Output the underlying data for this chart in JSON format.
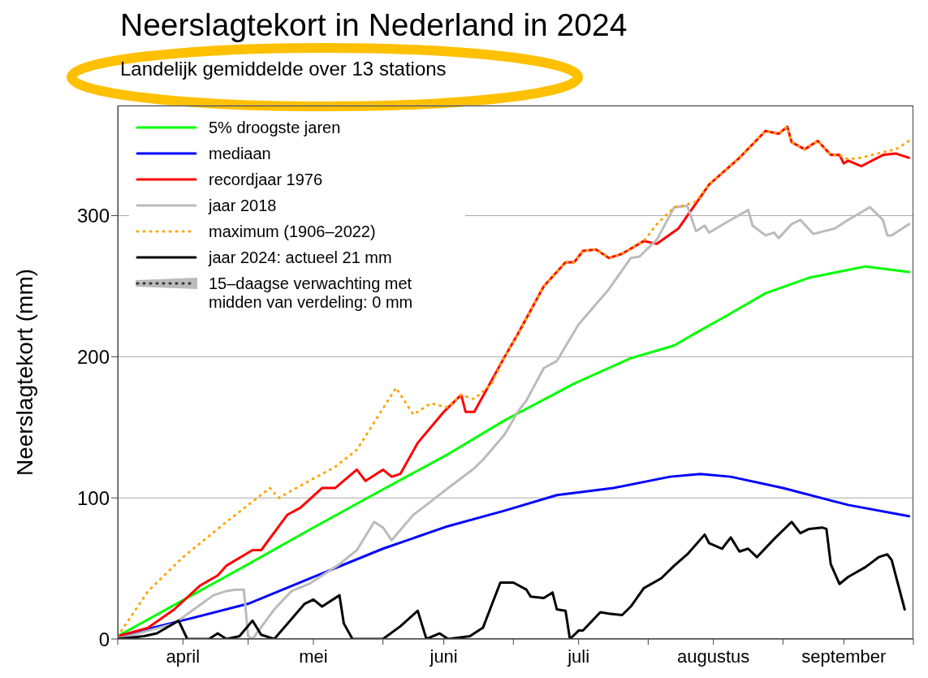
{
  "chart_data": {
    "type": "line",
    "title": "Neerslagtekort in Nederland in 2024",
    "subtitle": "Landelijk gemiddelde over 13 stations",
    "ylabel": "Neerslagtekort (mm)",
    "xlim": [
      "--04-01",
      "--10-01"
    ],
    "xticks": [
      {
        "value": "--04-01",
        "label": null
      },
      {
        "value": "--04-16",
        "label": "april"
      },
      {
        "value": "--05-01",
        "label": null
      },
      {
        "value": "--05-16",
        "label": "mei"
      },
      {
        "value": "--06-01",
        "label": null
      },
      {
        "value": "--06-15",
        "label": "juni"
      },
      {
        "value": "--07-01",
        "label": null
      },
      {
        "value": "--07-16",
        "label": "juli"
      },
      {
        "value": "--08-01",
        "label": null
      },
      {
        "value": "--08-16",
        "label": "augustus"
      },
      {
        "value": "--09-01",
        "label": null
      },
      {
        "value": "--09-15",
        "label": "september"
      },
      {
        "value": "--10-01",
        "label": null
      }
    ],
    "ylim": [
      0,
      378
    ],
    "yticks": [
      0,
      100,
      200,
      300
    ],
    "grid": "y",
    "legend": "top left",
    "marker": "none",
    "series": [
      {
        "name": "5% droogste jaren",
        "color": "#00ff00",
        "x": [
          "--04-01",
          "--05-01",
          "--05-16",
          "--06-01",
          "--06-16",
          "--06-29",
          "--07-15",
          "--07-28",
          "--08-07",
          "--08-12",
          "--08-19",
          "--08-28",
          "--09-07",
          "--09-20",
          "--09-30"
        ],
        "values": [
          2,
          53,
          79,
          106,
          131,
          155,
          181,
          199,
          208,
          217,
          229,
          245,
          256,
          264,
          260
        ]
      },
      {
        "name": "mediaan",
        "color": "#0000ff",
        "x": [
          "--04-01",
          "--04-09",
          "--04-17",
          "--05-01",
          "--05-16",
          "--06-01",
          "--06-16",
          "--06-29",
          "--07-11",
          "--07-24",
          "--08-06",
          "--08-13",
          "--08-20",
          "--09-01",
          "--09-16",
          "--09-30"
        ],
        "values": [
          0,
          8,
          14,
          25,
          44,
          64,
          80,
          91,
          102,
          107,
          115,
          117,
          115,
          107,
          95,
          87
        ]
      },
      {
        "name": "recordjaar 1976",
        "color": "#ff0000",
        "x": [
          "--04-01",
          "--04-08",
          "--04-14",
          "--04-20",
          "--04-24",
          "--04-26",
          "--05-02",
          "--05-04",
          "--05-10",
          "--05-13",
          "--05-18",
          "--05-21",
          "--05-26",
          "--05-28",
          "--06-01",
          "--06-03",
          "--06-05",
          "--06-09",
          "--06-15",
          "--06-19",
          "--06-20",
          "--06-22",
          "--06-29",
          "--07-02",
          "--07-08",
          "--07-13",
          "--07-15",
          "--07-17",
          "--07-20",
          "--07-23",
          "--07-26",
          "--07-31",
          "--08-03",
          "--08-08",
          "--08-15",
          "--08-22",
          "--08-28",
          "--08-31",
          "--09-02",
          "--09-03",
          "--09-06",
          "--09-09",
          "--09-12",
          "--09-14",
          "--09-15",
          "--09-16",
          "--09-19",
          "--09-24",
          "--09-27",
          "--09-30"
        ],
        "values": [
          2,
          8,
          21,
          38,
          45,
          52,
          63,
          63,
          88,
          93,
          107,
          107,
          120,
          112,
          120,
          115,
          117,
          139,
          161,
          173,
          161,
          161,
          200,
          216,
          250,
          267,
          267,
          275,
          276,
          270,
          273,
          282,
          280,
          291,
          322,
          341,
          360,
          358,
          363,
          352,
          347,
          353,
          343,
          343,
          337,
          339,
          335,
          343,
          344,
          341
        ]
      },
      {
        "name": "jaar 2018",
        "color": "#bbbbbb",
        "x": [
          "--04-01",
          "--04-14",
          "--04-23",
          "--04-26",
          "--04-28",
          "--04-30",
          "--05-01",
          "--05-02",
          "--05-07",
          "--05-11",
          "--05-15",
          "--05-22",
          "--05-26",
          "--05-30",
          "--06-01",
          "--06-03",
          "--06-08",
          "--06-11",
          "--06-16",
          "--06-22",
          "--06-24",
          "--06-29",
          "--07-02",
          "--07-04",
          "--07-08",
          "--07-11",
          "--07-16",
          "--07-23",
          "--07-28",
          "--07-30",
          "--08-03",
          "--08-07",
          "--08-10",
          "--08-12",
          "--08-14",
          "--08-15",
          "--08-20",
          "--08-24",
          "--08-25",
          "--08-28",
          "--08-30",
          "--08-31",
          "--09-03",
          "--09-05",
          "--09-08",
          "--09-13",
          "--09-16",
          "--09-21",
          "--09-24",
          "--09-25",
          "--09-26",
          "--09-30"
        ],
        "values": [
          0,
          11,
          31,
          34,
          35,
          35,
          2,
          0,
          21,
          34,
          39,
          53,
          63,
          83,
          79,
          70,
          88,
          95,
          107,
          121,
          127,
          145,
          161,
          169,
          192,
          197,
          223,
          248,
          270,
          271,
          283,
          306,
          307,
          289,
          293,
          288,
          297,
          304,
          293,
          286,
          288,
          284,
          294,
          297,
          287,
          291,
          297,
          306,
          297,
          286,
          286,
          294
        ]
      },
      {
        "name": "maximum (1906–2022)",
        "color": "#ffa500",
        "line_style": "dotted",
        "x": [
          "--04-01",
          "--04-08",
          "--04-16",
          "--04-26",
          "--05-06",
          "--05-08",
          "--05-15",
          "--05-21",
          "--05-26",
          "--06-04",
          "--06-08",
          "--06-12",
          "--06-16",
          "--06-19",
          "--06-22",
          "--06-26",
          "--06-29",
          "--07-02",
          "--07-08",
          "--07-13",
          "--07-15",
          "--07-17",
          "--07-20",
          "--07-23",
          "--07-26",
          "--07-31",
          "--08-03",
          "--08-07",
          "--08-09",
          "--08-12",
          "--08-15",
          "--08-22",
          "--08-28",
          "--08-31",
          "--09-02",
          "--09-03",
          "--09-06",
          "--09-09",
          "--09-12",
          "--09-14",
          "--09-16",
          "--09-19",
          "--09-24",
          "--09-27",
          "--09-30"
        ],
        "values": [
          2,
          34,
          58,
          83,
          107,
          100,
          112,
          122,
          134,
          178,
          159,
          167,
          164,
          173,
          170,
          181,
          200,
          216,
          250,
          267,
          267,
          275,
          276,
          270,
          273,
          282,
          294,
          306,
          307,
          310,
          322,
          341,
          360,
          358,
          363,
          352,
          347,
          353,
          343,
          343,
          340,
          341,
          345,
          347,
          353
        ]
      },
      {
        "name": "jaar 2024: actueel 21 mm",
        "color": "#000000",
        "x": [
          "--04-01",
          "--04-07",
          "--04-10",
          "--04-15",
          "--04-17",
          "--04-22",
          "--04-24",
          "--04-26",
          "--04-29",
          "--05-02",
          "--05-04",
          "--05-07",
          "--05-14",
          "--05-16",
          "--05-18",
          "--05-22",
          "--05-23",
          "--05-25",
          "--06-01",
          "--06-05",
          "--06-09",
          "--06-11",
          "--06-14",
          "--06-16",
          "--06-21",
          "--06-24",
          "--06-28",
          "--07-01",
          "--07-04",
          "--07-05",
          "--07-08",
          "--07-10",
          "--07-11",
          "--07-13",
          "--07-14",
          "--07-16",
          "--07-17",
          "--07-21",
          "--07-23",
          "--07-26",
          "--07-28",
          "--07-31",
          "--08-04",
          "--08-07",
          "--08-10",
          "--08-14",
          "--08-15",
          "--08-18",
          "--08-20",
          "--08-22",
          "--08-24",
          "--08-26",
          "--08-30",
          "--09-03",
          "--09-05",
          "--09-07",
          "--09-10",
          "--09-11",
          "--09-12",
          "--09-14",
          "--09-16",
          "--09-20",
          "--09-23",
          "--09-25",
          "--09-26",
          "--09-29"
        ],
        "values": [
          0,
          2,
          4,
          13,
          0,
          0,
          4,
          0,
          2,
          13,
          3,
          0,
          25,
          28,
          23,
          31,
          11,
          0,
          0,
          9,
          20,
          0,
          4,
          0,
          2,
          8,
          40,
          40,
          35,
          30,
          29,
          33,
          21,
          20,
          0,
          6,
          6,
          19,
          18,
          17,
          23,
          36,
          43,
          52,
          60,
          74,
          68,
          64,
          72,
          62,
          64,
          58,
          71,
          83,
          75,
          78,
          79,
          78,
          53,
          39,
          44,
          51,
          58,
          60,
          56,
          21
        ]
      },
      {
        "name": "15–daagse verwachting met midden van verdeling: 0 mm",
        "color": "#333333",
        "line_style": "dotted"
      }
    ]
  }
}
